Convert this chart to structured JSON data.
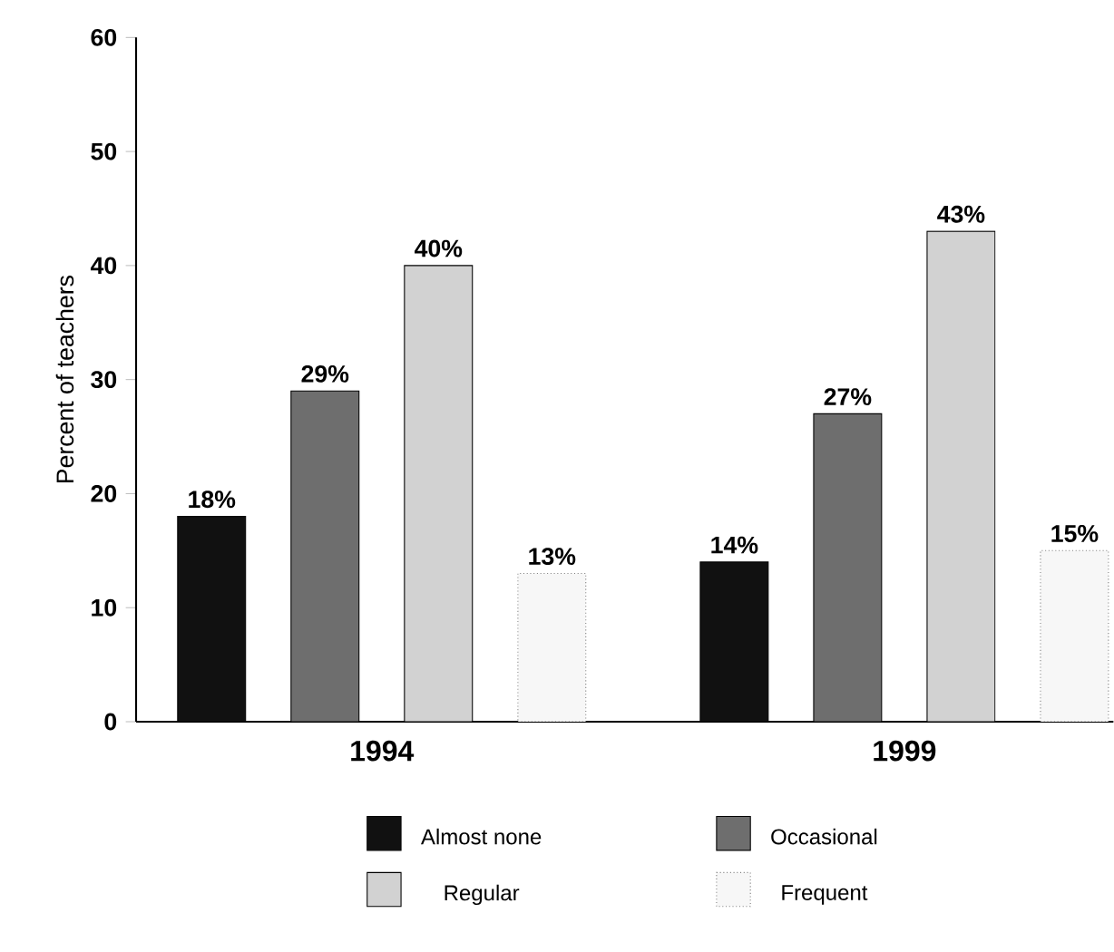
{
  "chart_data": {
    "type": "bar",
    "ylabel": "Percent of teachers",
    "categories": [
      "1994",
      "1999"
    ],
    "series": [
      {
        "name": "Almost none",
        "color": "#111111",
        "values": [
          18,
          14
        ],
        "value_labels": [
          "18%",
          "14%"
        ]
      },
      {
        "name": "Occasional",
        "color": "#6e6e6e",
        "values": [
          29,
          27
        ],
        "value_labels": [
          "29%",
          "27%"
        ]
      },
      {
        "name": "Regular",
        "color": "#d2d2d2",
        "values": [
          40,
          43
        ],
        "value_labels": [
          "40%",
          "43%"
        ]
      },
      {
        "name": "Frequent",
        "color": "#f7f7f7",
        "line_style": "dotted",
        "values": [
          13,
          15
        ],
        "value_labels": [
          "13%",
          "15%"
        ]
      }
    ],
    "ylim": [
      0,
      60
    ],
    "yticks": [
      0,
      10,
      20,
      30,
      40,
      50,
      60
    ],
    "grid": false,
    "legend": "bottom"
  }
}
